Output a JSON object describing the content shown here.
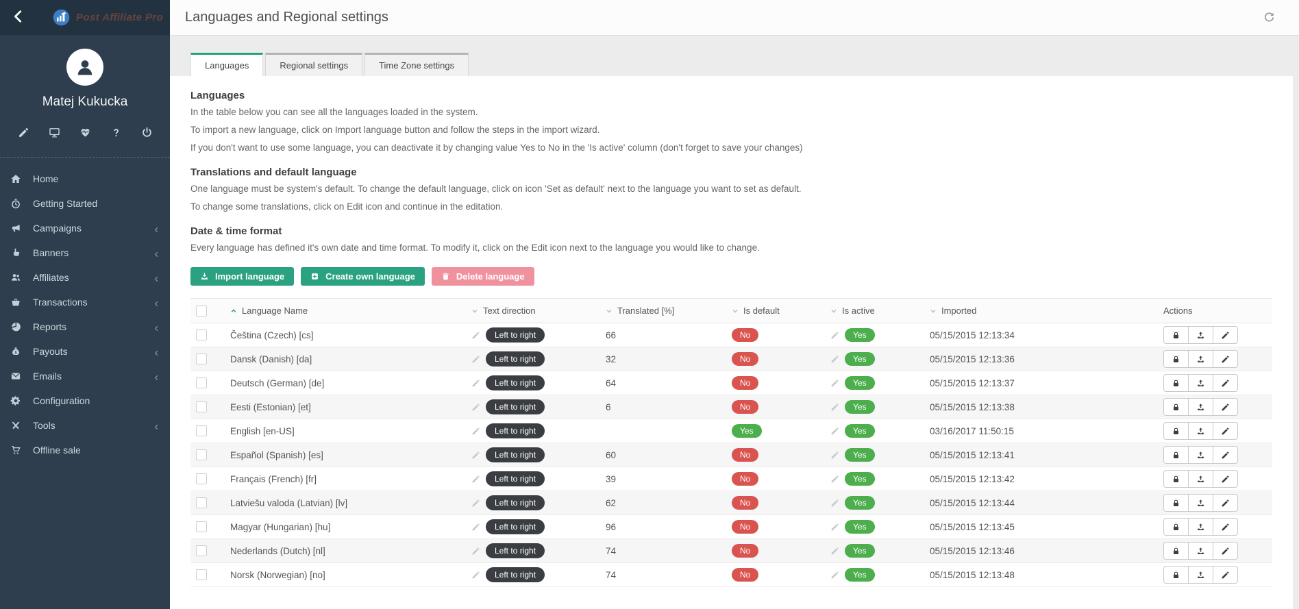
{
  "brand": {
    "name": "Post Affiliate Pro"
  },
  "user": {
    "name": "Matej Kukucka"
  },
  "sidebar": {
    "quick_icons": [
      "pencil-icon",
      "monitor-icon",
      "heartbeat-icon",
      "help-icon",
      "power-icon"
    ],
    "items": [
      {
        "label": "Home",
        "icon": "home",
        "chevron": false
      },
      {
        "label": "Getting Started",
        "icon": "stopwatch",
        "chevron": false
      },
      {
        "label": "Campaigns",
        "icon": "megaphone",
        "chevron": true
      },
      {
        "label": "Banners",
        "icon": "hand",
        "chevron": true
      },
      {
        "label": "Affiliates",
        "icon": "users",
        "chevron": true
      },
      {
        "label": "Transactions",
        "icon": "basket",
        "chevron": true
      },
      {
        "label": "Reports",
        "icon": "pie",
        "chevron": true
      },
      {
        "label": "Payouts",
        "icon": "moneybag",
        "chevron": true
      },
      {
        "label": "Emails",
        "icon": "envelope",
        "chevron": true
      },
      {
        "label": "Configuration",
        "icon": "gear",
        "chevron": false
      },
      {
        "label": "Tools",
        "icon": "tools",
        "chevron": true
      },
      {
        "label": "Offline sale",
        "icon": "cart",
        "chevron": false
      }
    ]
  },
  "header": {
    "title": "Languages and Regional settings"
  },
  "tabs": [
    {
      "label": "Languages",
      "active": true
    },
    {
      "label": "Regional settings",
      "active": false
    },
    {
      "label": "Time Zone settings",
      "active": false
    }
  ],
  "intro": {
    "sections": [
      {
        "heading": "Languages",
        "paragraphs": [
          "In the table below you can see all the languages loaded in the system.",
          "To import a new language, click on Import language button and follow the steps in the import wizard.",
          "If you don't want to use some language, you can deactivate it by changing value Yes to No in the 'Is active' column (don't forget to save your changes)"
        ]
      },
      {
        "heading": "Translations and default language",
        "paragraphs": [
          "One language must be system's default. To change the default language, click on icon 'Set as default' next to the language you want to set as default.",
          "To change some translations, click on Edit icon and continue in the editation."
        ]
      },
      {
        "heading": "Date & time format",
        "paragraphs": [
          "Every language has defined it's own date and time format. To modify it, click on the Edit icon next to the language you would like to change."
        ]
      }
    ]
  },
  "toolbar": {
    "import": "Import language",
    "create": "Create own language",
    "delete": "Delete language"
  },
  "table": {
    "headers": {
      "name": "Language Name",
      "direction": "Text direction",
      "translated": "Translated [%]",
      "is_default": "Is default",
      "is_active": "Is active",
      "imported": "Imported",
      "actions": "Actions"
    },
    "rows": [
      {
        "name": "Čeština (Czech) [cs]",
        "direction": "Left to right",
        "translated": "66",
        "is_default": "No",
        "is_active": "Yes",
        "imported": "05/15/2015 12:13:34"
      },
      {
        "name": "Dansk (Danish) [da]",
        "direction": "Left to right",
        "translated": "32",
        "is_default": "No",
        "is_active": "Yes",
        "imported": "05/15/2015 12:13:36"
      },
      {
        "name": "Deutsch (German) [de]",
        "direction": "Left to right",
        "translated": "64",
        "is_default": "No",
        "is_active": "Yes",
        "imported": "05/15/2015 12:13:37"
      },
      {
        "name": "Eesti (Estonian) [et]",
        "direction": "Left to right",
        "translated": "6",
        "is_default": "No",
        "is_active": "Yes",
        "imported": "05/15/2015 12:13:38"
      },
      {
        "name": "English [en-US]",
        "direction": "Left to right",
        "translated": "",
        "is_default": "Yes",
        "is_active": "Yes",
        "imported": "03/16/2017 11:50:15"
      },
      {
        "name": "Español (Spanish) [es]",
        "direction": "Left to right",
        "translated": "60",
        "is_default": "No",
        "is_active": "Yes",
        "imported": "05/15/2015 12:13:41"
      },
      {
        "name": "Français (French) [fr]",
        "direction": "Left to right",
        "translated": "39",
        "is_default": "No",
        "is_active": "Yes",
        "imported": "05/15/2015 12:13:42"
      },
      {
        "name": "Latviešu valoda (Latvian) [lv]",
        "direction": "Left to right",
        "translated": "62",
        "is_default": "No",
        "is_active": "Yes",
        "imported": "05/15/2015 12:13:44"
      },
      {
        "name": "Magyar (Hungarian) [hu]",
        "direction": "Left to right",
        "translated": "96",
        "is_default": "No",
        "is_active": "Yes",
        "imported": "05/15/2015 12:13:45"
      },
      {
        "name": "Nederlands (Dutch) [nl]",
        "direction": "Left to right",
        "translated": "74",
        "is_default": "No",
        "is_active": "Yes",
        "imported": "05/15/2015 12:13:46"
      },
      {
        "name": "Norsk (Norwegian) [no]",
        "direction": "Left to right",
        "translated": "74",
        "is_default": "No",
        "is_active": "Yes",
        "imported": "05/15/2015 12:13:48"
      }
    ]
  },
  "colors": {
    "accent_teal": "#2aa180",
    "badge_red": "#d9534f",
    "badge_green": "#4cae4c",
    "pill_dark": "#3a3e42",
    "delete_pink": "#f0919e",
    "sidebar_bg": "#2e3e4e",
    "sidebar_top_bg": "#233240"
  }
}
